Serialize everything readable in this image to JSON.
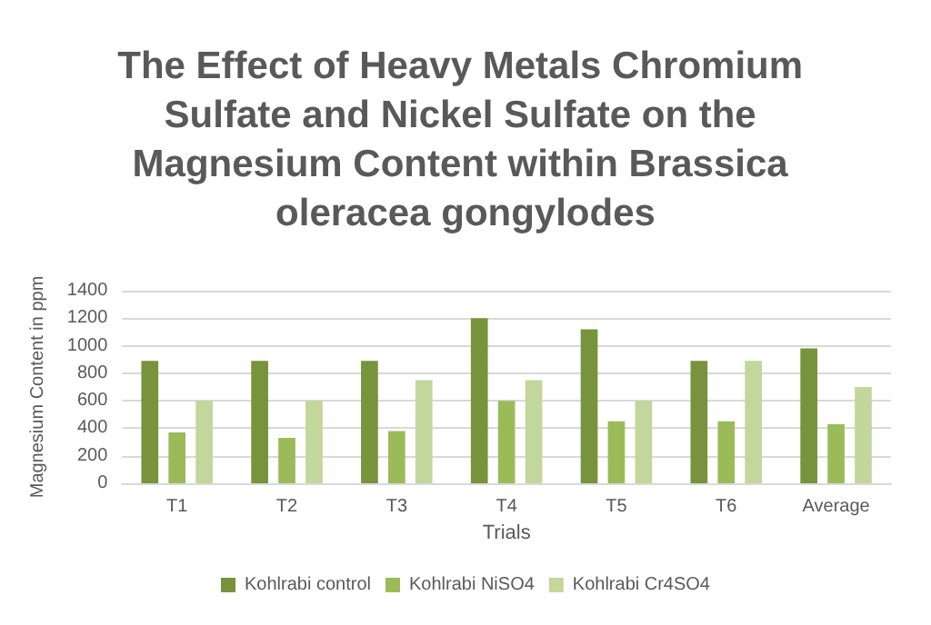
{
  "chart_data": {
    "type": "bar",
    "title": "The Effect of Heavy Metals Chromium Sulfate and Nickel Sulfate on the Magnesium Content within Brassica oleracea gongylodes",
    "xlabel": "Trials",
    "ylabel": "Magnesium Content in ppm",
    "categories": [
      "T1",
      "T2",
      "T3",
      "T4",
      "T5",
      "T6",
      "Average"
    ],
    "series": [
      {
        "name": "Kohlrabi control",
        "color": "#77933c",
        "values": [
          890,
          890,
          890,
          1200,
          1120,
          890,
          980
        ]
      },
      {
        "name": "Kohlrabi NiSO4",
        "color": "#9bbb59",
        "values": [
          370,
          330,
          380,
          600,
          450,
          450,
          430
        ]
      },
      {
        "name": "Kohlrabi Cr4SO4",
        "color": "#c3d69b",
        "values": [
          600,
          600,
          750,
          750,
          600,
          890,
          700
        ]
      }
    ],
    "ylim": [
      0,
      1400
    ],
    "yticks": [
      0,
      200,
      400,
      600,
      800,
      1000,
      1200,
      1400
    ],
    "grid": "y",
    "legend": "bottom"
  }
}
